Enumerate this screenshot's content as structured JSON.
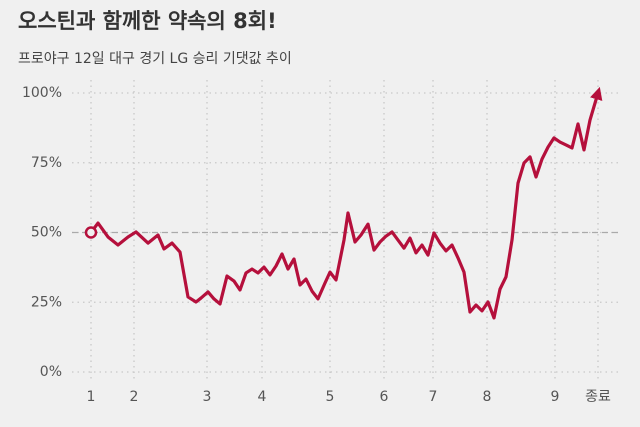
{
  "chart_data": {
    "type": "line",
    "title": "오스틴과 함께한 약속의 8회!",
    "subtitle": "프로야구 12일 대구 경기 LG 승리 기댓값 추이",
    "x": [
      0,
      7,
      17,
      27,
      37,
      45,
      57,
      67,
      73,
      81,
      89,
      97,
      105,
      110,
      117,
      123,
      129,
      136,
      143,
      149,
      155,
      161,
      167,
      173,
      179,
      185,
      191,
      197,
      203,
      209,
      215,
      221,
      227,
      234,
      239,
      245,
      253,
      257,
      264,
      270,
      277,
      283,
      289,
      295,
      301,
      307,
      313,
      319,
      325,
      331,
      337,
      343,
      349,
      355,
      361,
      367,
      373,
      379,
      385,
      391,
      397,
      403,
      409,
      415,
      421,
      427,
      433,
      439,
      445,
      451,
      457,
      463,
      469,
      475,
      481,
      487,
      493,
      499,
      507
    ],
    "series": [
      {
        "name": "LG 승리 기댓값",
        "color": "#b5103c",
        "values": [
          50,
          53.4,
          48.4,
          45.5,
          48.4,
          50.2,
          46.2,
          49.1,
          44.1,
          46.2,
          43,
          26.9,
          25.1,
          26.5,
          28.7,
          26.2,
          24.4,
          34.4,
          32.6,
          29.4,
          35.5,
          36.9,
          35.5,
          37.6,
          34.8,
          38,
          42.3,
          36.9,
          40.5,
          31.2,
          33.3,
          29,
          26.2,
          31.9,
          35.8,
          33,
          47.3,
          57,
          46.6,
          49.1,
          53,
          43.7,
          46.6,
          48.7,
          50.2,
          47.3,
          44.4,
          48,
          42.7,
          45.5,
          41.9,
          49.8,
          46.2,
          43.4,
          45.5,
          40.9,
          35.8,
          21.5,
          24,
          21.9,
          25.1,
          19.4,
          29.7,
          34.1,
          47.3,
          67.7,
          74.9,
          77.1,
          69.9,
          76.3,
          80.6,
          83.9,
          82.4,
          81.4,
          80.3,
          88.9,
          79.6,
          90.3,
          100
        ]
      }
    ],
    "xlim": [
      0,
      507
    ],
    "xticks": [
      {
        "value": 0,
        "label": "1"
      },
      {
        "value": 43,
        "label": "2"
      },
      {
        "value": 116,
        "label": "3"
      },
      {
        "value": 171,
        "label": "4"
      },
      {
        "value": 239,
        "label": "5"
      },
      {
        "value": 293,
        "label": "6"
      },
      {
        "value": 342,
        "label": "7"
      },
      {
        "value": 396,
        "label": "8"
      },
      {
        "value": 464,
        "label": "9"
      },
      {
        "value": 507,
        "label": "종료"
      }
    ],
    "ylim": [
      0,
      100
    ],
    "yticks": [
      {
        "value": 0,
        "label": "0%"
      },
      {
        "value": 25,
        "label": "25%"
      },
      {
        "value": 50,
        "label": "50%"
      },
      {
        "value": 75,
        "label": "75%"
      },
      {
        "value": 100,
        "label": "100%"
      }
    ],
    "reference_line": 50,
    "grid": true
  }
}
